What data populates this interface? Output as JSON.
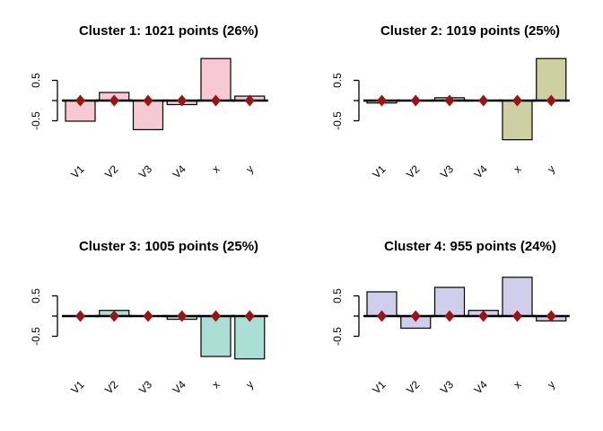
{
  "figure": {
    "background": "#ffffff",
    "axis_color": "#000000",
    "bar_border_color": "#000000",
    "zero_line_color": "#000000",
    "marker_color": "#991414",
    "marker_shape": "diamond",
    "marker_value": 0
  },
  "chart_data": [
    {
      "type": "bar",
      "title": "Cluster 1: 1021 points (26%)",
      "categories": [
        "V1",
        "V2",
        "V3",
        "V4",
        "x",
        "y"
      ],
      "values": [
        -0.51,
        0.2,
        -0.72,
        -0.1,
        1.04,
        0.11
      ],
      "markers": [
        0,
        0,
        0,
        0,
        0,
        0
      ],
      "bar_color": "#F7C9D4",
      "ylim": [
        -1.15,
        1.15
      ],
      "yticks": [
        0.5,
        0,
        -0.5
      ],
      "ytick_labels": [
        "0.5",
        "",
        "-0.5"
      ],
      "grid": false,
      "legend": "none"
    },
    {
      "type": "bar",
      "title": "Cluster 2: 1019 points (25%)",
      "categories": [
        "V1",
        "V2",
        "V3",
        "V4",
        "x",
        "y"
      ],
      "values": [
        -0.06,
        0.0,
        0.07,
        0.0,
        -0.97,
        1.04
      ],
      "markers": [
        0,
        0,
        0,
        0,
        0,
        0
      ],
      "bar_color": "#CDD1A1",
      "ylim": [
        -1.15,
        1.15
      ],
      "yticks": [
        0.5,
        0,
        -0.5
      ],
      "ytick_labels": [
        "0.5",
        "",
        "-0.5"
      ],
      "grid": false,
      "legend": "none"
    },
    {
      "type": "bar",
      "title": "Cluster 3: 1005 points (25%)",
      "categories": [
        "V1",
        "V2",
        "V3",
        "V4",
        "x",
        "y"
      ],
      "values": [
        0.0,
        0.14,
        0.0,
        -0.08,
        -1.0,
        -1.06
      ],
      "markers": [
        0,
        0,
        0,
        0,
        0,
        0
      ],
      "bar_color": "#A9DFD4",
      "ylim": [
        -1.15,
        1.15
      ],
      "yticks": [
        0.5,
        0,
        -0.5
      ],
      "ytick_labels": [
        "0.5",
        "",
        "-0.5"
      ],
      "grid": false,
      "legend": "none"
    },
    {
      "type": "bar",
      "title": "Cluster 4: 955 points (24%)",
      "categories": [
        "V1",
        "V2",
        "V3",
        "V4",
        "x",
        "y"
      ],
      "values": [
        0.6,
        -0.3,
        0.71,
        0.14,
        0.96,
        -0.12
      ],
      "markers": [
        0,
        0,
        0,
        0,
        0,
        0
      ],
      "bar_color": "#D1CEEC",
      "ylim": [
        -1.15,
        1.15
      ],
      "yticks": [
        0.5,
        0,
        -0.5
      ],
      "ytick_labels": [
        "0.5",
        "",
        "-0.5"
      ],
      "grid": false,
      "legend": "none"
    }
  ]
}
